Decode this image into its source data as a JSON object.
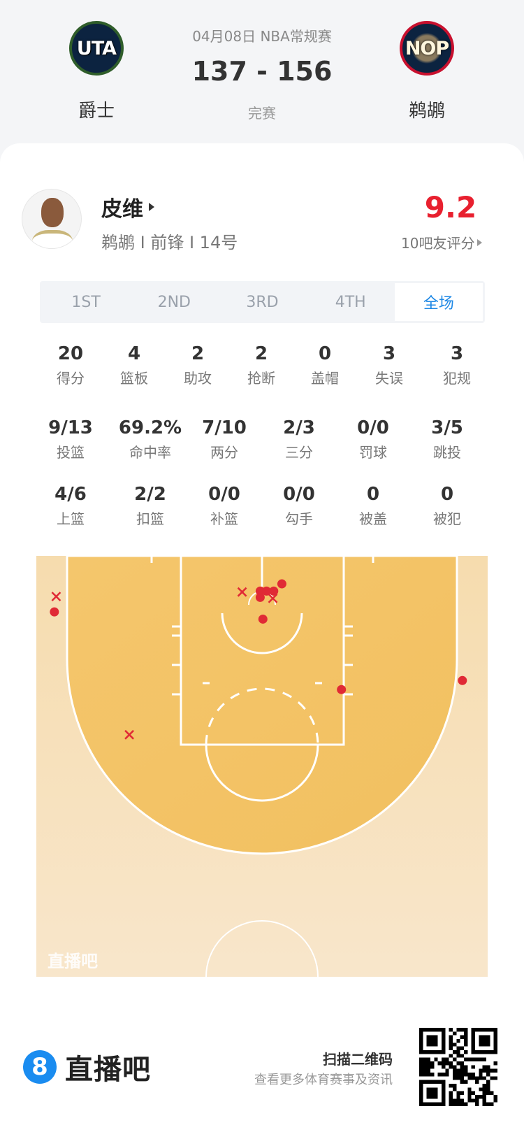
{
  "header": {
    "date_league": "04月08日 NBA常规赛",
    "score": "137 - 156",
    "status": "完赛",
    "home": {
      "name": "爵士",
      "abbr": "UTA",
      "color": "#0c2340"
    },
    "away": {
      "name": "鹈鹕",
      "abbr": "NOP",
      "color": "#0c2340"
    }
  },
  "player": {
    "name": "皮维",
    "info": "鹈鹕 I 前锋 I 14号",
    "rating": "9.2",
    "rating_label": "10吧友评分",
    "rating_color": "#e8202f"
  },
  "tabs": [
    {
      "label": "1ST"
    },
    {
      "label": "2ND"
    },
    {
      "label": "3RD"
    },
    {
      "label": "4TH"
    },
    {
      "label": "全场",
      "active": true
    }
  ],
  "stats_row1": [
    {
      "value": "20",
      "label": "得分"
    },
    {
      "value": "4",
      "label": "篮板"
    },
    {
      "value": "2",
      "label": "助攻"
    },
    {
      "value": "2",
      "label": "抢断"
    },
    {
      "value": "0",
      "label": "盖帽"
    },
    {
      "value": "3",
      "label": "失误"
    },
    {
      "value": "3",
      "label": "犯规"
    }
  ],
  "stats_row2": [
    {
      "value": "9/13",
      "label": "投篮"
    },
    {
      "value": "69.2%",
      "label": "命中率"
    },
    {
      "value": "7/10",
      "label": "两分"
    },
    {
      "value": "2/3",
      "label": "三分"
    },
    {
      "value": "0/0",
      "label": "罚球"
    },
    {
      "value": "3/5",
      "label": "跳投"
    }
  ],
  "stats_row3": [
    {
      "value": "4/6",
      "label": "上篮"
    },
    {
      "value": "2/2",
      "label": "扣篮"
    },
    {
      "value": "0/0",
      "label": "补篮"
    },
    {
      "value": "0/0",
      "label": "勾手"
    },
    {
      "value": "0",
      "label": "被盖"
    },
    {
      "value": "0",
      "label": "被犯"
    }
  ],
  "shot_chart": {
    "watermark": "直播吧",
    "units": "feet (x across baseline 0-50, y from baseline)",
    "made_color": "#e02a35",
    "shots": [
      {
        "x": 2.0,
        "y": 6.2,
        "made": true
      },
      {
        "x": 47.2,
        "y": 13.8,
        "made": true
      },
      {
        "x": 33.8,
        "y": 14.8,
        "made": true
      },
      {
        "x": 25.1,
        "y": 7.0,
        "made": true
      },
      {
        "x": 27.2,
        "y": 3.1,
        "made": true
      },
      {
        "x": 24.8,
        "y": 3.9,
        "made": true
      },
      {
        "x": 26.3,
        "y": 3.9,
        "made": true
      },
      {
        "x": 25.5,
        "y": 3.9,
        "made": true
      },
      {
        "x": 24.8,
        "y": 4.6,
        "made": true
      },
      {
        "x": 2.2,
        "y": 4.5,
        "made": false
      },
      {
        "x": 22.8,
        "y": 4.0,
        "made": false
      },
      {
        "x": 26.2,
        "y": 4.7,
        "made": false
      },
      {
        "x": 10.3,
        "y": 19.8,
        "made": false
      }
    ]
  },
  "footer": {
    "brand": "直播吧",
    "brand_icon": "8",
    "scan": "扫描二维码",
    "sub": "查看更多体育赛事及资讯"
  }
}
